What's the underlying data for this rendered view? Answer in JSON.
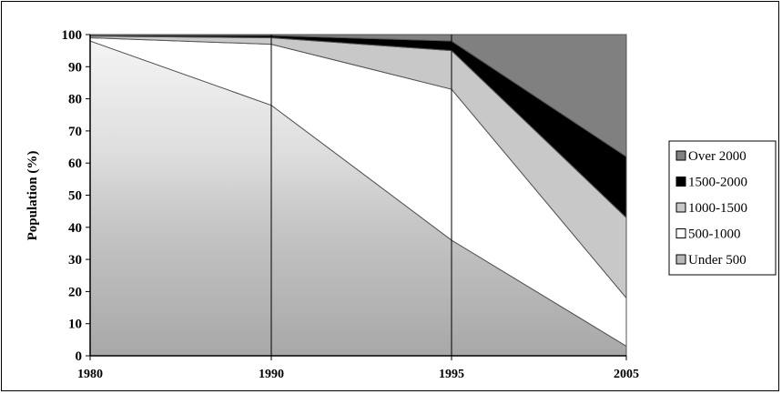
{
  "chart_data": {
    "type": "area",
    "stacked": true,
    "percent": true,
    "x": [
      "1980",
      "1990",
      "1995",
      "2005"
    ],
    "ylabel": "Population (%)",
    "xlabel": "",
    "ylim": [
      0,
      100
    ],
    "yticks": [
      "0",
      "10",
      "20",
      "30",
      "40",
      "50",
      "60",
      "70",
      "80",
      "90",
      "100"
    ],
    "series": [
      {
        "name": "Under 500",
        "color": "#b8b8b8",
        "values": [
          98,
          78,
          36,
          3
        ]
      },
      {
        "name": "500-1000",
        "color": "#ffffff",
        "values": [
          1,
          19,
          47,
          15
        ]
      },
      {
        "name": "1000-1500",
        "color": "#c8c8c8",
        "values": [
          0.5,
          2,
          12,
          25
        ]
      },
      {
        "name": "1500-2000",
        "color": "#000000",
        "values": [
          0.3,
          0.7,
          3,
          19
        ]
      },
      {
        "name": "Over 2000",
        "color": "#808080",
        "values": [
          0.2,
          0.3,
          2,
          38
        ]
      }
    ],
    "legend": {
      "placement": "right",
      "order": [
        "Over 2000",
        "1500-2000",
        "1000-1500",
        "500-1000",
        "Under 500"
      ]
    },
    "vertical_gridlines_at": [
      "1990",
      "1995"
    ]
  }
}
